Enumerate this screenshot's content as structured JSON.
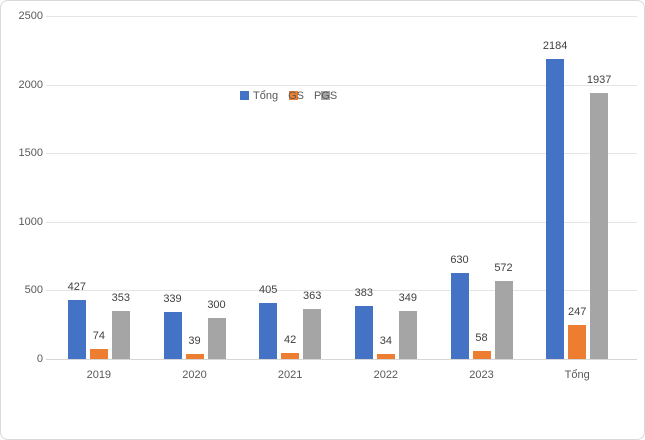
{
  "chart": {
    "background": "#FFFFFF",
    "border_color": "#D9D9D9",
    "axis_text_color": "#595959",
    "data_label_color": "#404040"
  },
  "legend": {
    "items": [
      {
        "label": "Tổng",
        "color": "#4472C4",
        "overlap": false,
        "marker_left": 0
      },
      {
        "label": "GS",
        "color": "#ED7D31",
        "overlap": true,
        "marker_left": 1
      },
      {
        "label": "PGS",
        "color": "#A5A5A5",
        "overlap": true,
        "marker_left": 7
      }
    ]
  },
  "chart_data": {
    "type": "bar",
    "title": "",
    "xlabel": "",
    "ylabel": "",
    "categories": [
      "2019",
      "2020",
      "2021",
      "2022",
      "2023",
      "Tổng"
    ],
    "series": [
      {
        "name": "Tổng",
        "color": "#4472C4",
        "values": [
          427,
          339,
          405,
          383,
          630,
          2184
        ]
      },
      {
        "name": "GS",
        "color": "#ED7D31",
        "values": [
          74,
          39,
          42,
          34,
          58,
          247
        ]
      },
      {
        "name": "PGS",
        "color": "#A5A5A5",
        "values": [
          353,
          300,
          363,
          349,
          572,
          1937
        ]
      }
    ],
    "y_ticks": [
      0,
      500,
      1000,
      1500,
      2000,
      2500
    ],
    "ylim": [
      0,
      2500
    ],
    "grid": true,
    "data_labels": true,
    "legend_position": "inside-top-center"
  }
}
